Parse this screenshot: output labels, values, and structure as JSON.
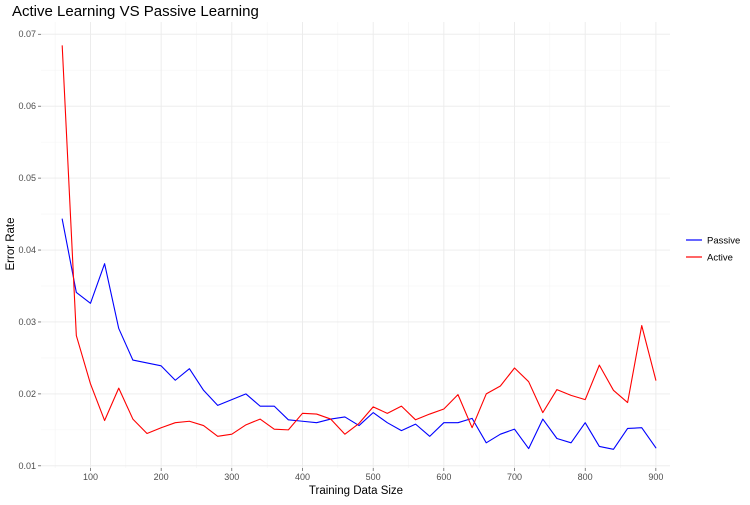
{
  "chart_data": {
    "type": "line",
    "title": "Active Learning VS Passive Learning",
    "xlabel": "Training Data Size",
    "ylabel": "Error Rate",
    "xlim": [
      30,
      920
    ],
    "ylim": [
      0.0097,
      0.0717
    ],
    "x_ticks": [
      100,
      200,
      300,
      400,
      500,
      600,
      700,
      800,
      900
    ],
    "x_tick_labels": [
      "100",
      "200",
      "300",
      "400",
      "500",
      "600",
      "700",
      "800",
      "900"
    ],
    "y_ticks": [
      0.01,
      0.02,
      0.03,
      0.04,
      0.05,
      0.06,
      0.07
    ],
    "y_tick_labels": [
      "0.01",
      "0.02",
      "0.03",
      "0.04",
      "0.05",
      "0.06",
      "0.07"
    ],
    "grid": true,
    "legend_position": "right",
    "x": [
      60,
      80,
      100,
      120,
      140,
      160,
      180,
      200,
      220,
      240,
      260,
      280,
      300,
      320,
      340,
      360,
      380,
      400,
      420,
      440,
      460,
      480,
      500,
      520,
      540,
      560,
      580,
      600,
      620,
      640,
      660,
      680,
      700,
      720,
      740,
      760,
      780,
      800,
      820,
      840,
      860,
      880,
      900
    ],
    "series": [
      {
        "name": "Passive",
        "color": "#0000ff",
        "values": [
          0.0443,
          0.0341,
          0.0326,
          0.0381,
          0.0291,
          0.0247,
          0.0243,
          0.0239,
          0.0219,
          0.0235,
          0.0205,
          0.0184,
          0.0192,
          0.02,
          0.0183,
          0.0183,
          0.0164,
          0.0162,
          0.016,
          0.0165,
          0.0168,
          0.0156,
          0.0174,
          0.016,
          0.0149,
          0.0158,
          0.0141,
          0.016,
          0.016,
          0.0166,
          0.0132,
          0.0144,
          0.0151,
          0.0124,
          0.0165,
          0.0138,
          0.0132,
          0.016,
          0.0127,
          0.0123,
          0.0152,
          0.0153,
          0.0125
        ]
      },
      {
        "name": "Active",
        "color": "#ff0000",
        "values": [
          0.0684,
          0.0281,
          0.0214,
          0.0163,
          0.0208,
          0.0165,
          0.0145,
          0.0153,
          0.016,
          0.0162,
          0.0156,
          0.0141,
          0.0144,
          0.0157,
          0.0165,
          0.0151,
          0.015,
          0.0173,
          0.0172,
          0.0165,
          0.0144,
          0.0159,
          0.0182,
          0.0173,
          0.0183,
          0.0164,
          0.0172,
          0.0179,
          0.0199,
          0.0153,
          0.02,
          0.0211,
          0.0236,
          0.0217,
          0.0174,
          0.0206,
          0.0198,
          0.0192,
          0.024,
          0.0205,
          0.0188,
          0.0295,
          0.0219
        ]
      }
    ]
  }
}
